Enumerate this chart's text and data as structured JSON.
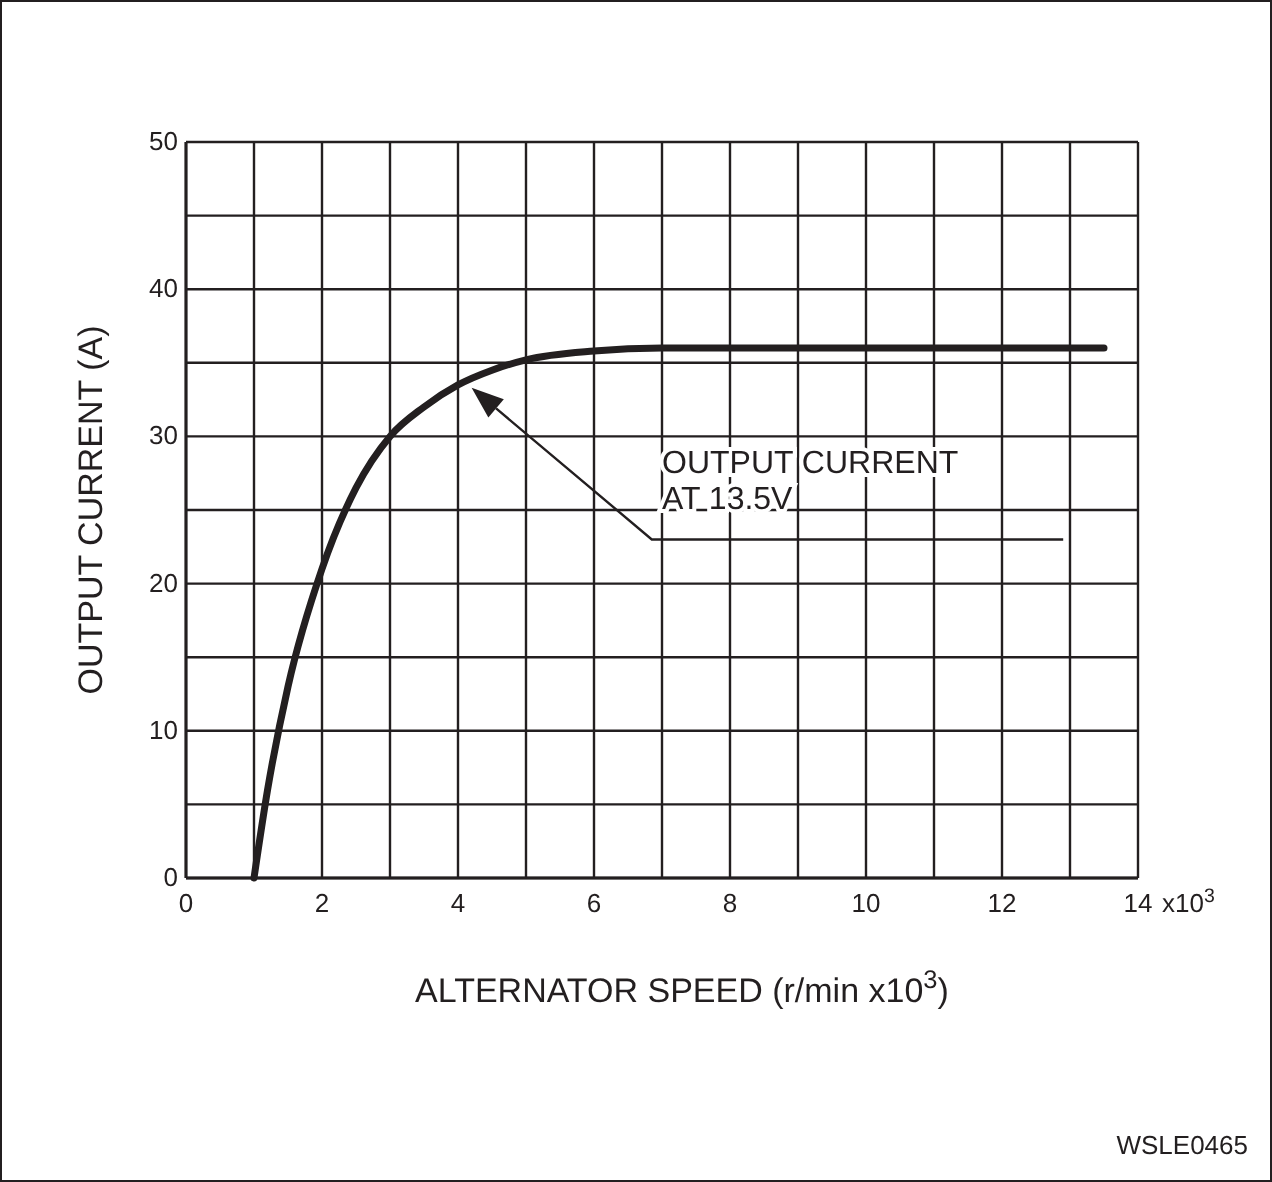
{
  "chart_data": {
    "type": "line",
    "xlabel": "ALTERNATOR SPEED (r/min x10$^{3}$)",
    "ylabel": "OUTPUT CURRENT (A)",
    "xlim": [
      0,
      14
    ],
    "ylim": [
      0,
      50
    ],
    "xticks": [
      0,
      {
        "value": 1,
        "label": null
      },
      2,
      {
        "value": 3,
        "label": null
      },
      4,
      {
        "value": 5,
        "label": null
      },
      6,
      {
        "value": 7,
        "label": null
      },
      8,
      {
        "value": 9,
        "label": null
      },
      10,
      {
        "value": 11,
        "label": null
      },
      12,
      {
        "value": 13,
        "label": null
      },
      14
    ],
    "yticks": [
      0,
      {
        "value": 5,
        "label": null
      },
      10,
      {
        "value": 15,
        "label": null
      },
      20,
      {
        "value": 25,
        "label": null
      },
      30,
      {
        "value": 35,
        "label": null
      },
      40,
      {
        "value": 45,
        "label": null
      },
      50
    ],
    "grid": true,
    "series": [
      {
        "color": "#231f20",
        "x": [
          1,
          1.2,
          1.5,
          2,
          2.5,
          3,
          3.5,
          4,
          4.5,
          5,
          6,
          7,
          13.5
        ],
        "values": [
          0,
          6,
          13,
          21,
          26.5,
          30,
          32,
          33.5,
          34.5,
          35.2,
          35.8,
          36,
          36
        ]
      }
    ],
    "annotations": [
      "OUTPUT CURRENT AT 13.5V",
      "x10$^{3}$",
      "WSLE0465"
    ]
  }
}
